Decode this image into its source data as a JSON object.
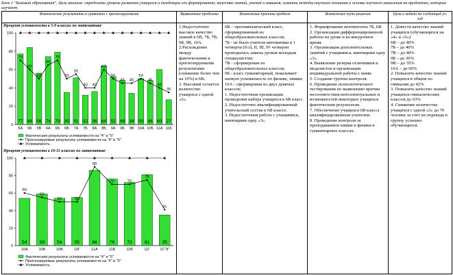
{
  "header": {
    "text": "Блок 1 \"Базовый образования\". Цель анализа: определить уровень развития учащихся и тенденции его формирования; качество знаний, умений и навыков, освоить методы научного познания и основы научного мышления на предметах, которые изучают."
  },
  "columns": [
    "Фактические результаты в сравнении с прогнозируемыми",
    "Выявленные проблемы",
    "Возможные причины проблем",
    "Возможные пути решения",
    "Цели и задачи на следующий уч. год"
  ],
  "chart_data": [
    {
      "type": "bar",
      "title": "Процент успеваемости в 5-9 классах по математике",
      "categories": [
        "5А",
        "5Б",
        "5В",
        "6А",
        "6Б",
        "6В",
        "7А",
        "7Б",
        "8А",
        "8Б",
        "9А",
        "9Б",
        "9В",
        "10А",
        "10Б",
        "11А",
        "11Б"
      ],
      "series": [
        {
          "name": "Фактические результаты успеваемости на \"4\" и \"5\"",
          "values": [
            77,
            84,
            56,
            74,
            79,
            35,
            51,
            32,
            36,
            64,
            52,
            48,
            34,
            50,
            48,
            60,
            27
          ]
        },
        {
          "name": "Прогнозируемые результаты успеваемости на \"4\" и \"5\"",
          "values": [
            70,
            60,
            50,
            65,
            70,
            50,
            55,
            40,
            40,
            60,
            50,
            45,
            45,
            50,
            45,
            40,
            35
          ]
        },
        {
          "name": "Успеваемость",
          "values": [
            100,
            100,
            100,
            100,
            100,
            100,
            100,
            100,
            100,
            100,
            100,
            100,
            100,
            100,
            100,
            100,
            100
          ]
        }
      ],
      "actual_labels": [
        "77",
        "84",
        "56",
        "74",
        "79",
        "35",
        "51",
        "32",
        "36",
        "64",
        "52",
        "48",
        "34",
        "50",
        "48",
        "60",
        "27"
      ],
      "forecast_labels": [
        "70",
        "60",
        "50",
        "65",
        "70",
        "50",
        "55",
        "40",
        "40",
        "60",
        "50",
        "45",
        "45",
        "50",
        "45",
        "40",
        "35"
      ],
      "yticks": [
        "100",
        "80",
        "60",
        "40",
        "20",
        "0"
      ],
      "ylim": [
        0,
        100
      ],
      "legend": "bottom"
    },
    {
      "type": "bar",
      "title": "Процент успеваемости в 10-11 классах по математике",
      "categories": [
        "10А",
        "10Б",
        "10В",
        "10Г",
        "11А",
        "11Б",
        "11В",
        "11Г",
        "11\"Э\""
      ],
      "series": [
        {
          "name": "Фактические результаты успеваемости на \"4\" и \"5\"",
          "values": [
            54,
            59,
            54,
            55,
            86,
            76,
            72,
            81,
            35
          ]
        },
        {
          "name": "Прогнозируемые результаты успеваемости на \"4\" и \"5\"",
          "values": [
            60,
            55,
            50,
            50,
            90,
            70,
            70,
            75,
            41
          ]
        },
        {
          "name": "Успеваемость",
          "values": [
            100,
            100,
            100,
            100,
            100,
            100,
            100,
            100,
            100
          ]
        }
      ],
      "actual_labels": [
        "54",
        "59",
        "54",
        "55",
        "86",
        "76",
        "72",
        "81",
        "35"
      ],
      "forecast_labels": [
        "60",
        "55",
        "50",
        "50",
        "90",
        "70",
        "70",
        "75",
        "41"
      ],
      "yticks": [
        "100",
        "80",
        "60",
        "40",
        "20",
        "0"
      ],
      "ylim": [
        0,
        100
      ],
      "legend": "bottom"
    }
  ],
  "problems": [
    "1.Недостаточно высокое качество знаний в 6В, 7Б, 7В, 9Б, 9В, 10А.",
    "2.Расхождение между фактическими и прогнозируемыми результатами (снижение более чем на 10%) в 6В.",
    "3. Высоким остается количество учащихся с одной «3»."
  ],
  "causes": [
    "6В – прогимназический класс, сформированный из общеобразовательных классов;",
    "7Б - не было учителя математики в 1 четверти (6/л), II, III, IV четверти проводилась замена уроков молодым специалистом;",
    "7В - сформирован из общеобразовательных классов;",
    "9Б - класс гуманитарный, показывает низкую успеваемость по физике, химии;",
    "10А - сформирован из двух девятых классов;",
    "1. Недостаточная организация проведения набора учащихся в 6В класс.",
    "2. Недостаточно квалифицированный учительский состав в 6В классе.",
    "3. Недостаточная работа с учащимися, имеющими одну «3»."
  ],
  "solutions": [
    "1. Формирование контингента 7Б, 6В",
    "2. Организация дифференцированной работы на уроке и во внеурочное время.",
    "3. Организация дополнительных занятий с учащимися, имеющими одну «3».",
    "4. Выявление резерва отличников и медалистов и организация индивидуальной работы с ними.",
    "5. Создание группы контроля.",
    "6. Проведение психологического тестирования по выявлению причин несоответствия интеллектуальных и возможностей некоторых учащихся фактическим результатам.",
    "7. Обеспечение учащихся 6В класса квалифицированным учителем.",
    "8. Проведение контроля за преподаванием химии и физики в гуманитарных классах."
  ],
  "goals": [
    "1. Довести качество знаний учащихся (обучающихся на «4» и «5»):",
    "6В – до 40%",
    "7Б – до 40%",
    "7В – до 40%",
    "9Б – до 30%",
    "9В – до 35%",
    "10А – до 60%",
    "2. Повысить качество знаний учащихся в общем по гимназии до 42%",
    "3. Повысить качество знаний учащихся гимназических классов до 63%",
    "4. Снижение количества учащихся с одной «3» до 70 человек за счет их перевода в группу успешно обучающихся."
  ],
  "colors": {
    "bar": "#33dd33",
    "bar_stroke": "#004400",
    "line": "#000000"
  }
}
